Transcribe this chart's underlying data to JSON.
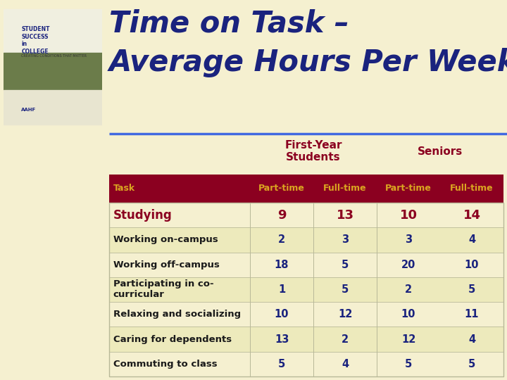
{
  "title_line1": "Time on Task –",
  "title_line2": "Average Hours Per Week",
  "title_color": "#1a237e",
  "background_color": "#f5f0d0",
  "header_bg_color": "#8b0020",
  "header_text_color": "#DAA520",
  "group_label_fy": "First-Year\nStudents",
  "group_label_sen": "Seniors",
  "group_label_color": "#8b0020",
  "col_headers": [
    "Task",
    "Part-time",
    "Full-time",
    "Part-time",
    "Full-time"
  ],
  "tasks": [
    "Studying",
    "Working on-campus",
    "Working off-campus",
    "Participating in co-\ncurricular",
    "Relaxing and socializing",
    "Caring for dependents",
    "Commuting to class"
  ],
  "task_color_0": "#8b0020",
  "task_color_rest": "#1a1a1a",
  "studying_color": "#8b0020",
  "values": [
    [
      "9",
      "13",
      "10",
      "14"
    ],
    [
      "2",
      "3",
      "3",
      "4"
    ],
    [
      "18",
      "5",
      "20",
      "10"
    ],
    [
      "1",
      "5",
      "2",
      "5"
    ],
    [
      "10",
      "12",
      "10",
      "11"
    ],
    [
      "13",
      "2",
      "12",
      "4"
    ],
    [
      "5",
      "4",
      "5",
      "5"
    ]
  ],
  "value_color_0": "#8b0020",
  "value_color_rest": "#1a237e",
  "separator_color": "#b8b898",
  "blue_line_color": "#4169E1",
  "row_bg_even": "#f5f0d0",
  "row_bg_odd": "#edeabc"
}
